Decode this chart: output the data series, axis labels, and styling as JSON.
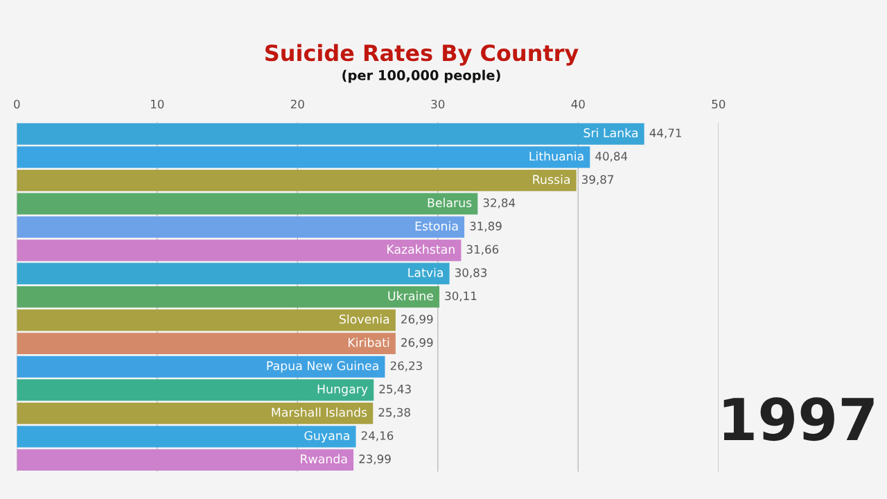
{
  "chart_data": {
    "type": "bar",
    "orientation": "horizontal",
    "title": "Suicide Rates By Country",
    "subtitle": "(per 100,000 people)",
    "categories": [
      "Sri Lanka",
      "Lithuania",
      "Russia",
      "Belarus",
      "Estonia",
      "Kazakhstan",
      "Latvia",
      "Ukraine",
      "Slovenia",
      "Kiribati",
      "Papua New Guinea",
      "Hungary",
      "Marshall Islands",
      "Guyana",
      "Rwanda"
    ],
    "values": [
      44.71,
      40.84,
      39.87,
      32.84,
      31.89,
      31.66,
      30.83,
      30.11,
      26.99,
      26.99,
      26.23,
      25.43,
      25.38,
      24.16,
      23.99
    ],
    "value_labels": [
      "44,71",
      "40,84",
      "39,87",
      "32,84",
      "31,89",
      "31,66",
      "30,83",
      "30,11",
      "26,99",
      "26,99",
      "26,23",
      "25,43",
      "25,38",
      "24,16",
      "23,99"
    ],
    "colors": [
      "#3aa6d8",
      "#3ba4e2",
      "#a9a142",
      "#5aab6b",
      "#6da2e8",
      "#cd80c9",
      "#38a8d2",
      "#5ba967",
      "#a9a142",
      "#d48a69",
      "#3ea1e2",
      "#3bb08f",
      "#a9a142",
      "#3aa6e0",
      "#cd80cb"
    ],
    "xlim": [
      0,
      50
    ],
    "xticks": [
      0,
      10,
      20,
      30,
      40,
      50
    ],
    "grid": "x",
    "annotations": [
      "1997"
    ]
  }
}
